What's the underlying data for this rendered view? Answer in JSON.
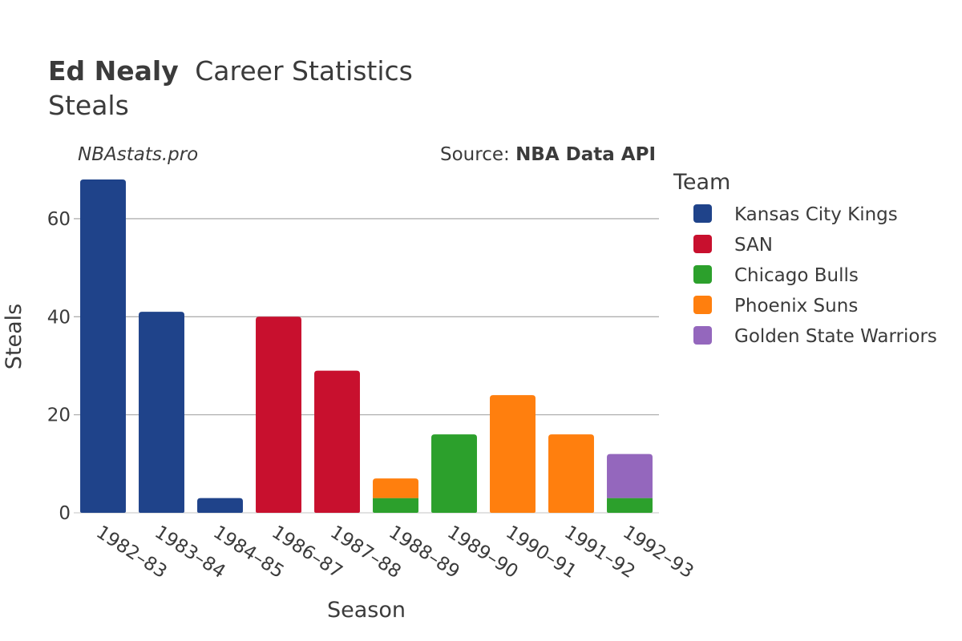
{
  "title": {
    "name": "Ed Nealy",
    "rest": "Career Statistics",
    "subtitle": "Steals"
  },
  "watermark": "NBAstats.pro",
  "source": {
    "prefix": "Source: ",
    "name": "NBA Data API"
  },
  "chart_data": {
    "type": "bar",
    "stacked": true,
    "xlabel": "Season",
    "ylabel": "Steals",
    "ylim": [
      0,
      68
    ],
    "yticks": [
      0,
      20,
      40,
      60
    ],
    "grid": true,
    "legend_title": "Team",
    "legend_position": "right",
    "categories": [
      "1982–83",
      "1983–84",
      "1984–85",
      "1986–87",
      "1987–88",
      "1988–89",
      "1989–90",
      "1990–91",
      "1991–92",
      "1992–93"
    ],
    "series": [
      {
        "name": "Kansas City Kings",
        "color": "#1f438a",
        "values": [
          68,
          41,
          3,
          0,
          0,
          0,
          0,
          0,
          0,
          0
        ]
      },
      {
        "name": "SAN",
        "color": "#c8102e",
        "values": [
          0,
          0,
          0,
          40,
          29,
          0,
          0,
          0,
          0,
          0
        ]
      },
      {
        "name": "Chicago Bulls",
        "color": "#2ca02c",
        "values": [
          0,
          0,
          0,
          0,
          0,
          3,
          16,
          0,
          0,
          3
        ]
      },
      {
        "name": "Phoenix Suns",
        "color": "#ff7f0e",
        "values": [
          0,
          0,
          0,
          0,
          0,
          4,
          0,
          24,
          16,
          0
        ]
      },
      {
        "name": "Golden State Warriors",
        "color": "#9467bd",
        "values": [
          0,
          0,
          0,
          0,
          0,
          0,
          0,
          0,
          0,
          9
        ]
      }
    ]
  }
}
